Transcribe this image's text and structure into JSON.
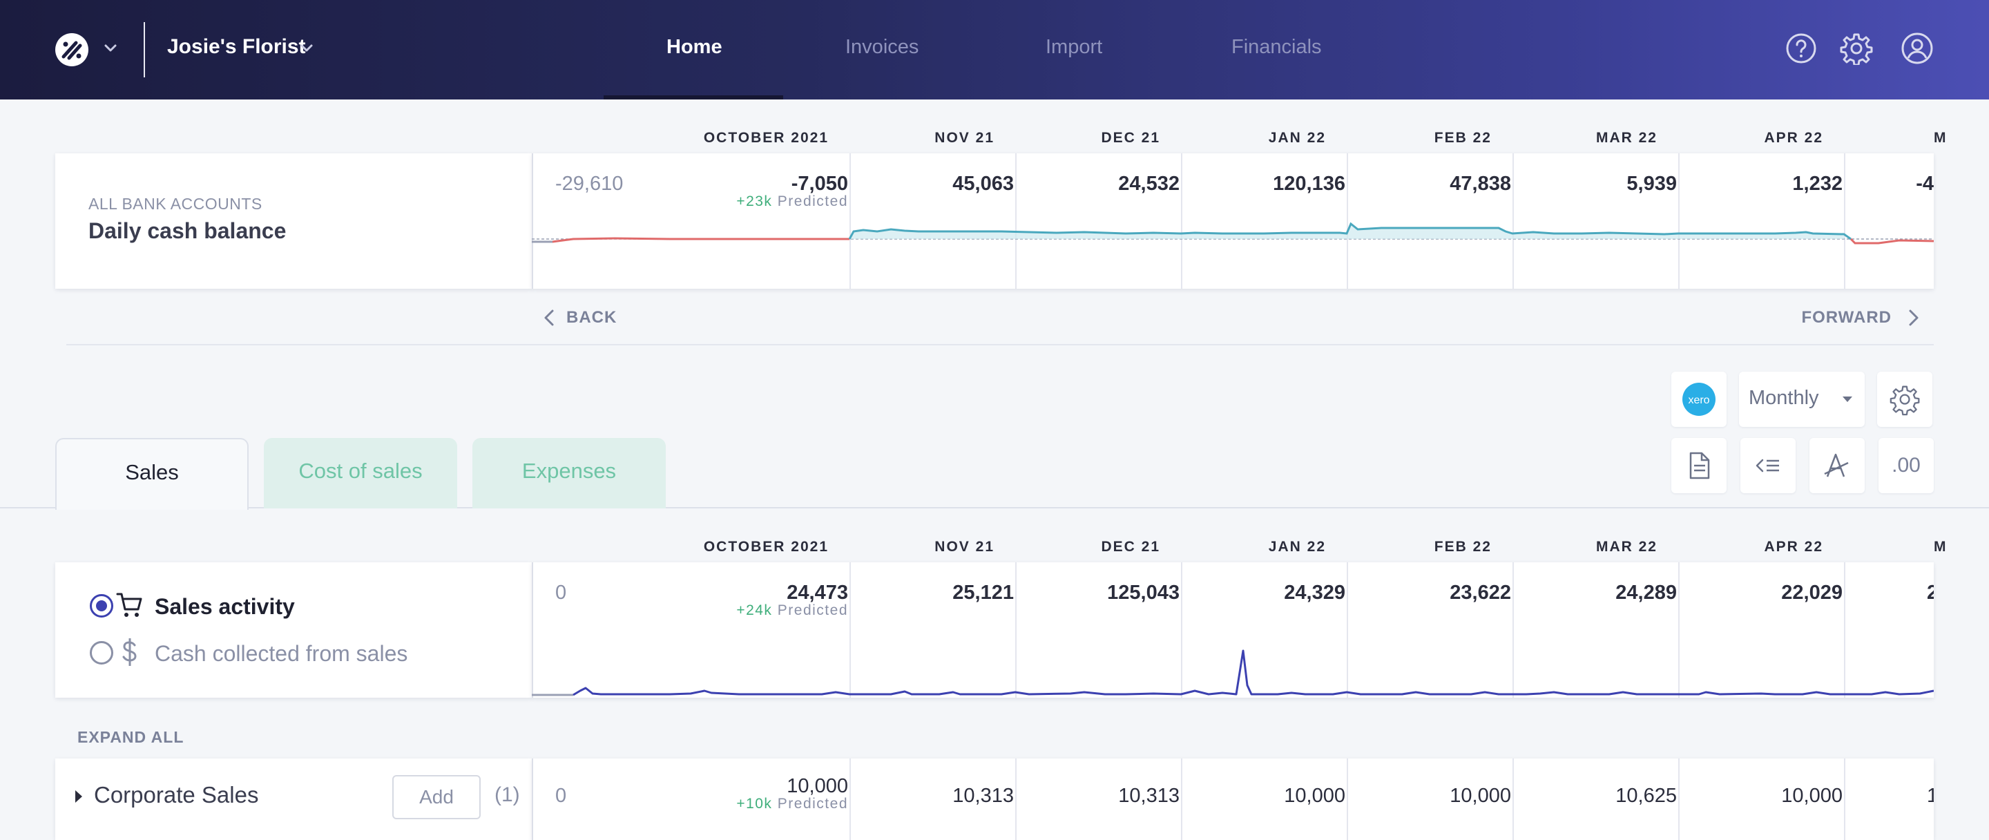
{
  "header": {
    "org_name": "Josie's Florist",
    "nav": [
      "Home",
      "Invoices",
      "Import",
      "Financials"
    ],
    "active_nav": "Home",
    "icons": [
      "help-icon",
      "gear-icon",
      "user-icon"
    ]
  },
  "months": [
    "OCTOBER 2021",
    "NOV 21",
    "DEC 21",
    "JAN 22",
    "FEB 22",
    "MAR 22",
    "APR 22",
    "M"
  ],
  "cash": {
    "category": "ALL BANK ACCOUNTS",
    "title": "Daily cash balance",
    "prior_value": "-29,610",
    "values": [
      "-7,050",
      "45,063",
      "24,532",
      "120,136",
      "47,838",
      "5,939",
      "1,232",
      "-4"
    ],
    "predicted_delta": "+23k",
    "predicted_label": "Predicted"
  },
  "pager": {
    "back": "BACK",
    "forward": "FORWARD"
  },
  "toolbar": {
    "integration": "xero",
    "period": "Monthly",
    "decimals": ".00"
  },
  "tabs": [
    "Sales",
    "Cost of sales",
    "Expenses"
  ],
  "active_tab": "Sales",
  "sales": {
    "options": [
      "Sales activity",
      "Cash collected from sales"
    ],
    "selected": "Sales activity",
    "prior_value": "0",
    "values": [
      "24,473",
      "25,121",
      "125,043",
      "24,329",
      "23,622",
      "24,289",
      "22,029",
      "2"
    ],
    "predicted_delta": "+24k",
    "predicted_label": "Predicted"
  },
  "expand_all": "EXPAND ALL",
  "rows": [
    {
      "name": "Corporate Sales",
      "add_label": "Add",
      "count": "(1)",
      "prior_value": "0",
      "values": [
        "10,000",
        "10,313",
        "10,313",
        "10,000",
        "10,000",
        "10,625",
        "10,000",
        "1"
      ],
      "predicted_delta": "+10k",
      "predicted_label": "Predicted"
    }
  ],
  "colors": {
    "header_start": "#1b1c3f",
    "header_end": "#4c4fb4",
    "cash_positive": "#4aa8be",
    "cash_negative": "#e06a6a",
    "sales_line": "#3c41b0",
    "predicted_green": "#3fae7b",
    "tab_inactive_bg": "#dff0ec",
    "tab_inactive_text": "#6fc5a6",
    "xero": "#2aaee6"
  },
  "chart_data": [
    {
      "type": "area",
      "title": "Daily cash balance",
      "categories": [
        "Oct 2021",
        "Nov 21",
        "Dec 21",
        "Jan 22",
        "Feb 22",
        "Mar 22",
        "Apr 22"
      ],
      "series": [
        {
          "values": [
            -7050,
            45063,
            24532,
            120136,
            47838,
            5939,
            1232
          ]
        }
      ]
    },
    {
      "type": "line",
      "title": "Sales activity",
      "categories": [
        "Oct 2021",
        "Nov 21",
        "Dec 21",
        "Jan 22",
        "Feb 22",
        "Mar 22",
        "Apr 22"
      ],
      "series": [
        {
          "values": [
            24473,
            25121,
            125043,
            24329,
            23622,
            24289,
            22029
          ]
        }
      ]
    }
  ]
}
